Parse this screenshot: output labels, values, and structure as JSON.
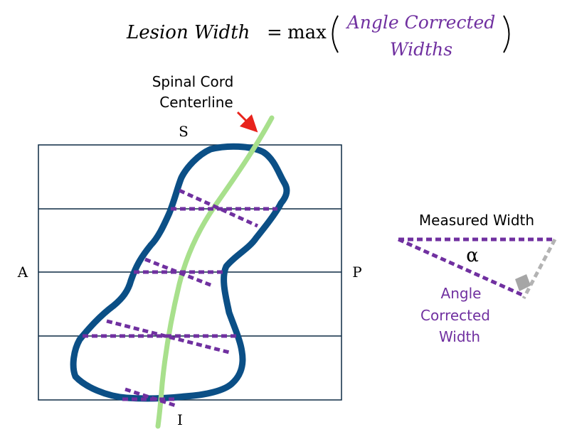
{
  "formula": {
    "lhs": "Lesion Width",
    "equals": "=",
    "func": "max",
    "arg_line1": "Angle Corrected",
    "arg_line2": "Widths"
  },
  "centerline_label": {
    "line1": "Spinal Cord",
    "line2": "Centerline"
  },
  "directions": {
    "superior": "S",
    "inferior": "I",
    "anterior": "A",
    "posterior": "P"
  },
  "inset": {
    "measured_label": "Measured Width",
    "angle_symbol": "α",
    "corrected_line1": "Angle",
    "corrected_line2": "Corrected",
    "corrected_line3": "Width"
  },
  "colors": {
    "lesion_outline": "#0b4f86",
    "centerline": "#a8e08c",
    "width_lines": "#7030a0",
    "arrow": "#e8231c",
    "perpendicular": "#b3b3b3",
    "grid": "#0d2a44"
  }
}
